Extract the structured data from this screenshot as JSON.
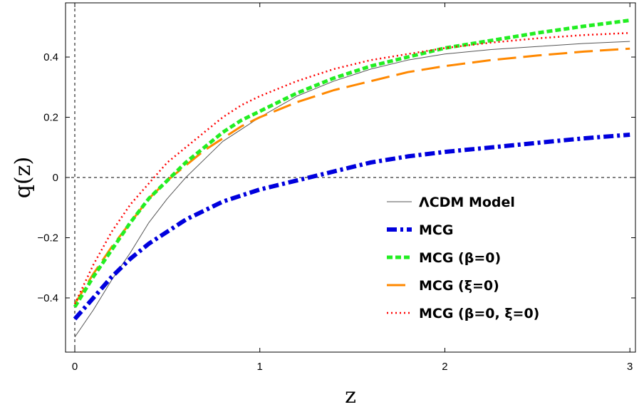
{
  "chart_data": {
    "type": "line",
    "title": "",
    "xlabel": "z",
    "ylabel": "q(z)",
    "xlim": [
      -0.05,
      3.03
    ],
    "ylim": [
      -0.58,
      0.58
    ],
    "xticks": [
      0,
      1,
      2,
      3
    ],
    "xtick_labels": [
      "0",
      "1",
      "2",
      "3"
    ],
    "yticks": [
      -0.4,
      -0.2,
      0,
      0.2,
      0.4
    ],
    "ytick_labels": [
      "-0.4",
      "-0.2",
      "0",
      "0.2",
      "0.4"
    ],
    "reference_lines": {
      "x": 0,
      "y": 0,
      "style": "dashed"
    },
    "legend_position": "center-right",
    "x": [
      0,
      0.1,
      0.2,
      0.3,
      0.4,
      0.5,
      0.6,
      0.7,
      0.8,
      0.9,
      1.0,
      1.2,
      1.4,
      1.6,
      1.8,
      2.0,
      2.25,
      2.5,
      2.75,
      3.0
    ],
    "series": [
      {
        "name": "ΛCDM Model",
        "color": "#555555",
        "style": "thin-solid",
        "values": [
          -0.53,
          -0.44,
          -0.34,
          -0.25,
          -0.15,
          -0.07,
          0.0,
          0.06,
          0.12,
          0.16,
          0.2,
          0.27,
          0.32,
          0.36,
          0.39,
          0.41,
          0.425,
          0.435,
          0.445,
          0.452
        ]
      },
      {
        "name": "MCG",
        "color": "#0000dd",
        "style": "thick-dashdot",
        "values": [
          -0.47,
          -0.4,
          -0.33,
          -0.27,
          -0.22,
          -0.18,
          -0.14,
          -0.11,
          -0.08,
          -0.06,
          -0.04,
          -0.01,
          0.02,
          0.05,
          0.07,
          0.085,
          0.1,
          0.115,
          0.13,
          0.142
        ]
      },
      {
        "name": "MCG (β=0)",
        "color": "#22ee22",
        "style": "thick-dashed",
        "values": [
          -0.43,
          -0.33,
          -0.24,
          -0.15,
          -0.07,
          -0.01,
          0.05,
          0.1,
          0.15,
          0.19,
          0.22,
          0.28,
          0.33,
          0.37,
          0.4,
          0.43,
          0.455,
          0.48,
          0.502,
          0.522
        ]
      },
      {
        "name": "MCG (ξ=0)",
        "color": "#ff8800",
        "style": "long-dashed",
        "values": [
          -0.42,
          -0.32,
          -0.23,
          -0.15,
          -0.07,
          -0.01,
          0.04,
          0.09,
          0.13,
          0.17,
          0.2,
          0.25,
          0.29,
          0.32,
          0.35,
          0.37,
          0.39,
          0.405,
          0.418,
          0.428
        ]
      },
      {
        "name": "MCG (β=0, ξ=0)",
        "color": "#ff0000",
        "style": "dotted",
        "values": [
          -0.42,
          -0.29,
          -0.18,
          -0.09,
          -0.02,
          0.05,
          0.1,
          0.15,
          0.2,
          0.24,
          0.27,
          0.32,
          0.36,
          0.39,
          0.41,
          0.43,
          0.448,
          0.462,
          0.473,
          0.48
        ]
      }
    ]
  }
}
